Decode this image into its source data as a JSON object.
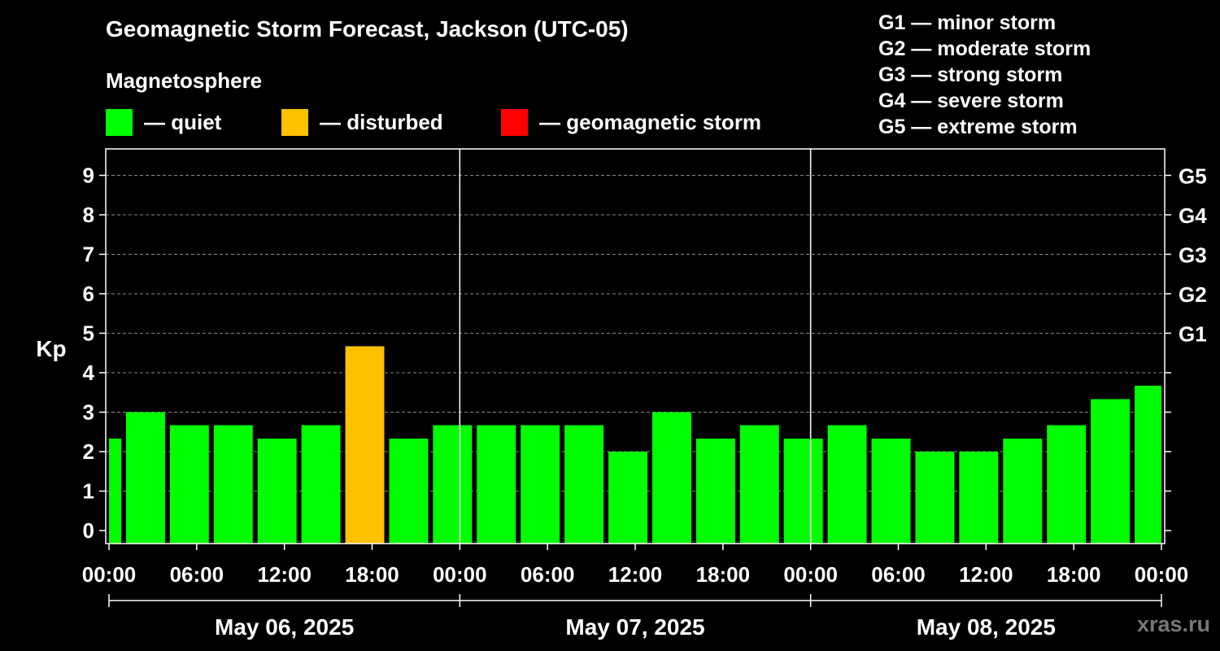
{
  "header": {
    "title": "Geomagnetic Storm Forecast, Jackson (UTC-05)",
    "subtitle": "Magnetosphere"
  },
  "legend": [
    {
      "label": "— quiet",
      "color": "#00ff00"
    },
    {
      "label": "— disturbed",
      "color": "#ffc000"
    },
    {
      "label": "— geomagnetic storm",
      "color": "#ff0000"
    }
  ],
  "g_scale_legend": [
    "G1 — minor storm",
    "G2 — moderate storm",
    "G3 — strong storm",
    "G4 — severe storm",
    "G5 — extreme storm"
  ],
  "watermark": "xras.ru",
  "chart_data": {
    "type": "bar",
    "title": "Geomagnetic Storm Forecast, Jackson (UTC-05)",
    "ylabel": "Kp",
    "ylim": [
      -0.33,
      9.67
    ],
    "yticks": [
      "0",
      "1",
      "2",
      "3",
      "4",
      "5",
      "6",
      "7",
      "8",
      "9"
    ],
    "right_axis_labels": [
      {
        "value": 5,
        "label": "G1"
      },
      {
        "value": 6,
        "label": "G2"
      },
      {
        "value": 7,
        "label": "G3"
      },
      {
        "value": 8,
        "label": "G4"
      },
      {
        "value": 9,
        "label": "G5"
      }
    ],
    "x_hours_range": [
      0,
      72
    ],
    "xtick_labels": [
      "00:00",
      "06:00",
      "12:00",
      "18:00",
      "00:00",
      "06:00",
      "12:00",
      "18:00",
      "00:00",
      "06:00",
      "12:00",
      "18:00",
      "00:00"
    ],
    "days": [
      "May 06, 2025",
      "May 07, 2025",
      "May 08, 2025"
    ],
    "bars": [
      {
        "start": 0,
        "end": 1,
        "kp": 2.33,
        "level": "quiet"
      },
      {
        "start": 1,
        "end": 4,
        "kp": 3.0,
        "level": "quiet"
      },
      {
        "start": 4,
        "end": 7,
        "kp": 2.67,
        "level": "quiet"
      },
      {
        "start": 7,
        "end": 10,
        "kp": 2.67,
        "level": "quiet"
      },
      {
        "start": 10,
        "end": 13,
        "kp": 2.33,
        "level": "quiet"
      },
      {
        "start": 13,
        "end": 16,
        "kp": 2.67,
        "level": "quiet"
      },
      {
        "start": 16,
        "end": 19,
        "kp": 4.67,
        "level": "disturbed"
      },
      {
        "start": 19,
        "end": 22,
        "kp": 2.33,
        "level": "quiet"
      },
      {
        "start": 22,
        "end": 25,
        "kp": 2.67,
        "level": "quiet"
      },
      {
        "start": 25,
        "end": 28,
        "kp": 2.67,
        "level": "quiet"
      },
      {
        "start": 28,
        "end": 31,
        "kp": 2.67,
        "level": "quiet"
      },
      {
        "start": 31,
        "end": 34,
        "kp": 2.67,
        "level": "quiet"
      },
      {
        "start": 34,
        "end": 37,
        "kp": 2.0,
        "level": "quiet"
      },
      {
        "start": 37,
        "end": 40,
        "kp": 3.0,
        "level": "quiet"
      },
      {
        "start": 40,
        "end": 43,
        "kp": 2.33,
        "level": "quiet"
      },
      {
        "start": 43,
        "end": 46,
        "kp": 2.67,
        "level": "quiet"
      },
      {
        "start": 46,
        "end": 49,
        "kp": 2.33,
        "level": "quiet"
      },
      {
        "start": 49,
        "end": 52,
        "kp": 2.67,
        "level": "quiet"
      },
      {
        "start": 52,
        "end": 55,
        "kp": 2.33,
        "level": "quiet"
      },
      {
        "start": 55,
        "end": 58,
        "kp": 2.0,
        "level": "quiet"
      },
      {
        "start": 58,
        "end": 61,
        "kp": 2.0,
        "level": "quiet"
      },
      {
        "start": 61,
        "end": 64,
        "kp": 2.33,
        "level": "quiet"
      },
      {
        "start": 64,
        "end": 67,
        "kp": 2.67,
        "level": "quiet"
      },
      {
        "start": 67,
        "end": 70,
        "kp": 3.33,
        "level": "quiet"
      },
      {
        "start": 70,
        "end": 72,
        "kp": 3.67,
        "level": "quiet"
      }
    ],
    "level_colors": {
      "quiet": "#00ff00",
      "disturbed": "#ffc000",
      "storm": "#ff0000"
    },
    "grid": "dashed horizontal at each Kp unit, solid vertical at day boundaries"
  }
}
